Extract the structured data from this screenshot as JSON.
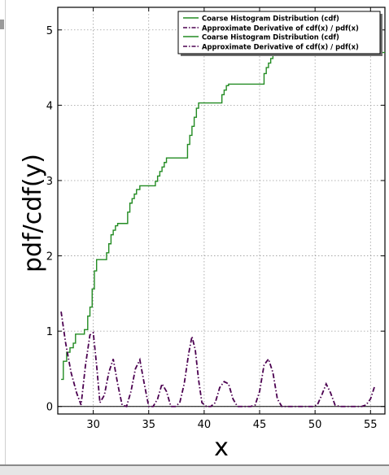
{
  "chart_data": {
    "type": "line",
    "title": "",
    "xlabel": "x",
    "ylabel": "pdf/cdf(y)",
    "xlim": [
      26.8,
      56.3
    ],
    "ylim": [
      -0.1,
      5.3
    ],
    "xticks": [
      30,
      35,
      40,
      45,
      50,
      55
    ],
    "yticks": [
      0,
      1,
      2,
      3,
      4,
      5
    ],
    "xtick_labels": [
      "30",
      "35",
      "40",
      "45",
      "50",
      "55"
    ],
    "ytick_labels": [
      "0",
      "1",
      "2",
      "3",
      "4",
      "5"
    ],
    "grid": true,
    "legend_position": "top-right",
    "legend": [
      {
        "label": "Coarse Histogram Distribution (cdf)",
        "color": "#228b22",
        "style": "solid"
      },
      {
        "label": "Approximate Derivative of cdf(x) / pdf(x)",
        "color": "#4b0050",
        "style": "dashdot"
      },
      {
        "label": "Coarse Histogram Distribution (cdf)",
        "color": "#228b22",
        "style": "solid"
      },
      {
        "label": "Approximate Derivative of cdf(x) / pdf(x)",
        "color": "#4b0050",
        "style": "dashdot"
      }
    ],
    "series": [
      {
        "name": "Coarse Histogram Distribution (cdf)",
        "color": "#228b22",
        "style": "steps",
        "x": [
          27.1,
          27.3,
          27.6,
          27.9,
          28.2,
          28.4,
          29.2,
          29.5,
          29.7,
          29.9,
          30.1,
          30.3,
          31.2,
          31.4,
          31.6,
          31.8,
          32.0,
          32.2,
          33.1,
          33.3,
          33.5,
          33.7,
          33.9,
          34.2,
          35.6,
          35.8,
          36.0,
          36.2,
          36.4,
          36.6,
          38.5,
          38.7,
          38.9,
          39.1,
          39.3,
          39.5,
          41.6,
          41.8,
          42.0,
          42.2,
          45.4,
          45.6,
          45.8,
          46.0,
          46.2
        ],
        "values": [
          0.36,
          0.6,
          0.72,
          0.78,
          0.84,
          0.96,
          1.02,
          1.2,
          1.32,
          1.56,
          1.8,
          1.95,
          2.04,
          2.16,
          2.28,
          2.34,
          2.4,
          2.43,
          2.58,
          2.7,
          2.76,
          2.82,
          2.88,
          2.93,
          2.99,
          3.06,
          3.12,
          3.18,
          3.24,
          3.3,
          3.48,
          3.6,
          3.72,
          3.84,
          3.96,
          4.03,
          4.14,
          4.2,
          4.26,
          4.28,
          4.42,
          4.5,
          4.56,
          4.62,
          4.7
        ]
      },
      {
        "name": "Approximate Derivative of cdf(x) / pdf(x)",
        "color": "#4b0050",
        "style": "dashdot",
        "x": [
          27.1,
          27.5,
          28.0,
          28.5,
          28.9,
          29.3,
          29.7,
          30.0,
          30.3,
          30.6,
          31.0,
          31.4,
          31.8,
          32.2,
          32.6,
          33.0,
          33.4,
          33.8,
          34.2,
          34.6,
          35.0,
          35.4,
          35.8,
          36.2,
          36.6,
          37.0,
          37.4,
          37.8,
          38.2,
          38.6,
          38.9,
          39.2,
          39.5,
          39.8,
          40.2,
          40.6,
          41.0,
          41.4,
          41.8,
          42.2,
          42.6,
          43.0,
          43.4,
          43.8,
          44.2,
          44.6,
          45.0,
          45.4,
          45.8,
          46.2,
          46.6,
          47.0,
          47.4,
          47.8,
          48.2,
          48.6,
          49.0,
          49.4,
          49.8,
          50.2,
          50.6,
          51.0,
          51.4,
          51.8,
          52.2,
          52.6,
          53.0,
          53.4,
          53.8,
          54.2,
          54.6,
          55.0,
          55.4
        ],
        "values": [
          1.26,
          0.85,
          0.45,
          0.18,
          0.02,
          0.55,
          0.95,
          0.98,
          0.55,
          0.05,
          0.15,
          0.45,
          0.63,
          0.3,
          0.02,
          0.0,
          0.2,
          0.5,
          0.62,
          0.3,
          0.0,
          0.0,
          0.1,
          0.3,
          0.2,
          0.0,
          0.0,
          0.05,
          0.3,
          0.7,
          0.93,
          0.75,
          0.35,
          0.05,
          0.0,
          0.0,
          0.05,
          0.25,
          0.33,
          0.3,
          0.1,
          0.0,
          0.0,
          0.0,
          0.0,
          0.02,
          0.2,
          0.55,
          0.63,
          0.45,
          0.1,
          0.0,
          0.0,
          0.0,
          0.0,
          0.0,
          0.0,
          0.0,
          0.0,
          0.02,
          0.15,
          0.3,
          0.18,
          0.02,
          0.0,
          0.0,
          0.0,
          0.0,
          0.0,
          0.0,
          0.02,
          0.1,
          0.28
        ]
      }
    ]
  }
}
